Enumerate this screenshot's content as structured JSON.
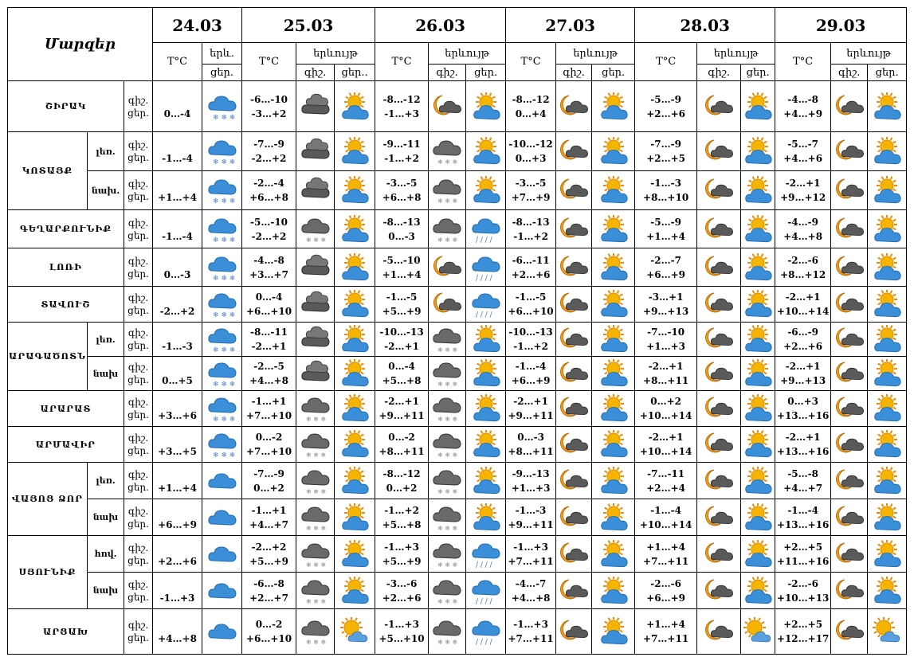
{
  "header": {
    "title": "Մարզեր",
    "temp_label": "T°C",
    "weather_label": "երևույթ",
    "weather_label_short": "երև.",
    "night": "գիշ.",
    "day": "ցեր.",
    "day_first": "ցեր..",
    "dates": [
      "24.03",
      "25.03",
      "26.03",
      "27.03",
      "28.03",
      "29.03"
    ]
  },
  "rows": [
    {
      "region": "ՇԻՐԱԿ",
      "sub": "",
      "days": [
        {
          "t1": "",
          "t2": "0…-4",
          "icons": [
            "snow"
          ]
        },
        {
          "t1": "-6…-10",
          "t2": "-3…+2",
          "icons": [
            "cloud-dark",
            "sun-cloud"
          ]
        },
        {
          "t1": "-8…-12",
          "t2": "-1…+3",
          "icons": [
            "moon-cloud",
            "sun-cloud"
          ]
        },
        {
          "t1": "-8…-12",
          "t2": "0…+4",
          "icons": [
            "moon-cloud",
            "sun-cloud"
          ]
        },
        {
          "t1": "-5…-9",
          "t2": "+2…+6",
          "icons": [
            "moon-cloud",
            "sun-cloud"
          ]
        },
        {
          "t1": "-4…-8",
          "t2": "+4…+9",
          "icons": [
            "moon-cloud",
            "sun-cloud"
          ]
        }
      ]
    },
    {
      "region": "ԿՈՏԱՅՔ",
      "sub": "լեռ.",
      "days": [
        {
          "t1": "",
          "t2": "-1…-4",
          "icons": [
            "snow"
          ]
        },
        {
          "t1": "-7…-9",
          "t2": "-2…+2",
          "icons": [
            "cloud-dark",
            "sun-cloud"
          ]
        },
        {
          "t1": "-9…-11",
          "t2": "-1…+2",
          "icons": [
            "snow-dark",
            "sun-cloud"
          ]
        },
        {
          "t1": "-10…-12",
          "t2": "0…+3",
          "icons": [
            "moon-cloud",
            "sun-cloud"
          ]
        },
        {
          "t1": "-7…-9",
          "t2": "+2…+5",
          "icons": [
            "moon-cloud",
            "sun-cloud"
          ]
        },
        {
          "t1": "-5…-7",
          "t2": "+4…+6",
          "icons": [
            "moon-cloud",
            "sun-cloud"
          ]
        }
      ]
    },
    {
      "region": "",
      "sub": "նախ.",
      "days": [
        {
          "t1": "",
          "t2": "+1…+4",
          "icons": [
            "snow"
          ]
        },
        {
          "t1": "-2…-4",
          "t2": "+6…+8",
          "icons": [
            "cloud-dark",
            "sun-cloud"
          ]
        },
        {
          "t1": "-3…-5",
          "t2": "+6…+8",
          "icons": [
            "snow-dark",
            "sun-cloud"
          ]
        },
        {
          "t1": "-3…-5",
          "t2": "+7…+9",
          "icons": [
            "moon-cloud",
            "sun-cloud"
          ]
        },
        {
          "t1": "-1…-3",
          "t2": "+8…+10",
          "icons": [
            "moon-cloud",
            "sun-cloud"
          ]
        },
        {
          "t1": "-2…+1",
          "t2": "+9…+12",
          "icons": [
            "moon-cloud",
            "sun-cloud"
          ]
        }
      ]
    },
    {
      "region": "ԳԵՂԱՐՔՈՒՆԻՔ",
      "sub": "",
      "days": [
        {
          "t1": "",
          "t2": "-1…-4",
          "icons": [
            "snow"
          ]
        },
        {
          "t1": "-5…-10",
          "t2": "-2…+2",
          "icons": [
            "snow-dark",
            "sun-cloud"
          ]
        },
        {
          "t1": "-8…-13",
          "t2": "0…-3",
          "icons": [
            "snow-dark",
            "rain"
          ]
        },
        {
          "t1": "-8…-13",
          "t2": "-1…+2",
          "icons": [
            "moon-cloud",
            "sun-cloud"
          ]
        },
        {
          "t1": "-5…-9",
          "t2": "+1…+4",
          "icons": [
            "moon-cloud",
            "sun-cloud"
          ]
        },
        {
          "t1": "-4…-9",
          "t2": "+4…+8",
          "icons": [
            "moon-cloud",
            "sun-cloud"
          ]
        }
      ]
    },
    {
      "region": "ԼՈՌԻ",
      "sub": "",
      "days": [
        {
          "t1": "",
          "t2": "0…-3",
          "icons": [
            "snow"
          ]
        },
        {
          "t1": "-4…-8",
          "t2": "+3…+7",
          "icons": [
            "cloud-dark",
            "sun-cloud"
          ]
        },
        {
          "t1": "-5…-10",
          "t2": "+1…+4",
          "icons": [
            "moon-cloud",
            "rain"
          ]
        },
        {
          "t1": "-6…-11",
          "t2": "+2…+6",
          "icons": [
            "moon-cloud",
            "sun-cloud"
          ]
        },
        {
          "t1": "-2…-7",
          "t2": "+6…+9",
          "icons": [
            "moon-cloud",
            "sun-cloud"
          ]
        },
        {
          "t1": "-2…-6",
          "t2": "+8…+12",
          "icons": [
            "moon-cloud",
            "sun-cloud"
          ]
        }
      ]
    },
    {
      "region": "ՏԱՎՈՒՇ",
      "sub": "",
      "days": [
        {
          "t1": "",
          "t2": "-2…+2",
          "icons": [
            "snow"
          ]
        },
        {
          "t1": "0…-4",
          "t2": "+6…+10",
          "icons": [
            "cloud-dark",
            "sun-cloud"
          ]
        },
        {
          "t1": "-1…-5",
          "t2": "+5…+9",
          "icons": [
            "moon-cloud",
            "rain"
          ]
        },
        {
          "t1": "-1…-5",
          "t2": "+6…+10",
          "icons": [
            "moon-cloud",
            "sun-cloud"
          ]
        },
        {
          "t1": "-3…+1",
          "t2": "+9…+13",
          "icons": [
            "moon-cloud",
            "sun-cloud"
          ]
        },
        {
          "t1": "-2…+1",
          "t2": "+10…+14",
          "icons": [
            "moon-cloud",
            "sun-cloud"
          ]
        }
      ]
    },
    {
      "region": "ԱՐԱԳԱԾՈՏՆ",
      "sub": "լեռ.",
      "days": [
        {
          "t1": "",
          "t2": "-1…-3",
          "icons": [
            "snow"
          ]
        },
        {
          "t1": "-8…-11",
          "t2": "-2…+1",
          "icons": [
            "cloud-dark",
            "sun-cloud"
          ]
        },
        {
          "t1": "-10…-13",
          "t2": "-2…+1",
          "icons": [
            "snow-dark",
            "sun-cloud"
          ]
        },
        {
          "t1": "-10…-13",
          "t2": "-1…+2",
          "icons": [
            "moon-cloud",
            "sun-cloud"
          ]
        },
        {
          "t1": "-7…-10",
          "t2": "+1…+3",
          "icons": [
            "moon-cloud",
            "sun-cloud"
          ]
        },
        {
          "t1": "-6…-9",
          "t2": "+2…+6",
          "icons": [
            "moon-cloud",
            "sun-cloud"
          ]
        }
      ]
    },
    {
      "region": "",
      "sub": "նախ",
      "days": [
        {
          "t1": "",
          "t2": "0…+5",
          "icons": [
            "snow"
          ]
        },
        {
          "t1": "-2…-5",
          "t2": "+4…+8",
          "icons": [
            "cloud-dark",
            "sun-cloud"
          ]
        },
        {
          "t1": "0…-4",
          "t2": "+5…+8",
          "icons": [
            "snow-dark",
            "sun-cloud"
          ]
        },
        {
          "t1": "-1…-4",
          "t2": "+6…+9",
          "icons": [
            "moon-cloud",
            "sun-cloud"
          ]
        },
        {
          "t1": "-2…+1",
          "t2": "+8…+11",
          "icons": [
            "moon-cloud",
            "sun-cloud"
          ]
        },
        {
          "t1": "-2…+1",
          "t2": "+9…+13",
          "icons": [
            "moon-cloud",
            "sun-cloud"
          ]
        }
      ]
    },
    {
      "region": "ԱՐԱՐԱՏ",
      "sub": "",
      "days": [
        {
          "t1": "",
          "t2": "+3…+6",
          "icons": [
            "snow"
          ]
        },
        {
          "t1": "-1…+1",
          "t2": "+7…+10",
          "icons": [
            "snow-dark",
            "sun-cloud"
          ]
        },
        {
          "t1": "-2…+1",
          "t2": "+9…+11",
          "icons": [
            "snow-dark",
            "sun-cloud"
          ]
        },
        {
          "t1": "-2…+1",
          "t2": "+9…+11",
          "icons": [
            "moon-cloud",
            "sun-cloud"
          ]
        },
        {
          "t1": "0…+2",
          "t2": "+10…+14",
          "icons": [
            "moon-cloud",
            "sun-cloud"
          ]
        },
        {
          "t1": "0…+3",
          "t2": "+13…+16",
          "icons": [
            "moon-cloud",
            "sun-cloud"
          ]
        }
      ]
    },
    {
      "region": "ԱՐՄԱՎԻՐ",
      "sub": "",
      "days": [
        {
          "t1": "",
          "t2": "+3…+5",
          "icons": [
            "snow"
          ]
        },
        {
          "t1": "0…-2",
          "t2": "+7…+10",
          "icons": [
            "snow-dark",
            "sun-cloud"
          ]
        },
        {
          "t1": "0…-2",
          "t2": "+8…+11",
          "icons": [
            "snow-dark",
            "sun-cloud"
          ]
        },
        {
          "t1": "0…-3",
          "t2": "+8…+11",
          "icons": [
            "moon-cloud",
            "sun-cloud"
          ]
        },
        {
          "t1": "-2…+1",
          "t2": "+10…+14",
          "icons": [
            "moon-cloud",
            "sun-cloud"
          ]
        },
        {
          "t1": "-2…+1",
          "t2": "+13…+16",
          "icons": [
            "moon-cloud",
            "sun-cloud"
          ]
        }
      ]
    },
    {
      "region": "ՎԱՅՈՑ ՁՈՐ",
      "sub": "լեռ.",
      "days": [
        {
          "t1": "",
          "t2": "+1…+4",
          "icons": [
            "cloud-blue"
          ]
        },
        {
          "t1": "-7…-9",
          "t2": "0…+2",
          "icons": [
            "snow-dark",
            "sun-cloud"
          ]
        },
        {
          "t1": "-8…-12",
          "t2": "0…+2",
          "icons": [
            "snow-dark",
            "sun-cloud"
          ]
        },
        {
          "t1": "-9…-13",
          "t2": "+1…+3",
          "icons": [
            "moon-cloud",
            "sun-cloud"
          ]
        },
        {
          "t1": "-7…-11",
          "t2": "+2…+4",
          "icons": [
            "moon-cloud",
            "sun-cloud"
          ]
        },
        {
          "t1": "-5…-8",
          "t2": "+4…+7",
          "icons": [
            "moon-cloud",
            "sun-cloud"
          ]
        }
      ]
    },
    {
      "region": "",
      "sub": "նախ",
      "days": [
        {
          "t1": "",
          "t2": "+6…+9",
          "icons": [
            "cloud-blue"
          ]
        },
        {
          "t1": "-1…+1",
          "t2": "+4…+7",
          "icons": [
            "snow-dark",
            "sun-cloud"
          ]
        },
        {
          "t1": "-1…+2",
          "t2": "+5…+8",
          "icons": [
            "snow-dark",
            "sun-cloud"
          ]
        },
        {
          "t1": "-1…-3",
          "t2": "+9…+11",
          "icons": [
            "moon-cloud",
            "sun-cloud"
          ]
        },
        {
          "t1": "-1…-4",
          "t2": "+10…+14",
          "icons": [
            "moon-cloud",
            "sun-cloud"
          ]
        },
        {
          "t1": "-1…-4",
          "t2": "+13…+16",
          "icons": [
            "moon-cloud",
            "sun-cloud"
          ]
        }
      ]
    },
    {
      "region": "ՍՅՈՒՆԻՔ",
      "sub": "հով.",
      "days": [
        {
          "t1": "",
          "t2": "+2…+6",
          "icons": [
            "cloud-blue"
          ]
        },
        {
          "t1": "-2…+2",
          "t2": "+5…+9",
          "icons": [
            "snow-dark",
            "sun-cloud"
          ]
        },
        {
          "t1": "-1…+3",
          "t2": "+5…+9",
          "icons": [
            "snow-dark",
            "rain"
          ]
        },
        {
          "t1": "-1…+3",
          "t2": "+7…+11",
          "icons": [
            "moon-cloud",
            "sun-cloud"
          ]
        },
        {
          "t1": "+1…+4",
          "t2": "+7…+11",
          "icons": [
            "moon-cloud",
            "sun-cloud"
          ]
        },
        {
          "t1": "+2…+5",
          "t2": "+11…+16",
          "icons": [
            "moon-cloud",
            "sun-cloud"
          ]
        }
      ]
    },
    {
      "region": "",
      "sub": "նախ",
      "days": [
        {
          "t1": "",
          "t2": "-1…+3",
          "icons": [
            "cloud-blue"
          ]
        },
        {
          "t1": "-6…-8",
          "t2": "+2…+7",
          "icons": [
            "snow-dark",
            "sun-cloud"
          ]
        },
        {
          "t1": "-3…-6",
          "t2": "+2…+6",
          "icons": [
            "snow-dark",
            "rain"
          ]
        },
        {
          "t1": "-4…-7",
          "t2": "+4…+8",
          "icons": [
            "moon-cloud",
            "sun-cloud"
          ]
        },
        {
          "t1": "-2…-6",
          "t2": "+6…+9",
          "icons": [
            "moon-cloud",
            "sun-cloud"
          ]
        },
        {
          "t1": "-2…-6",
          "t2": "+10…+13",
          "icons": [
            "moon-cloud",
            "sun-cloud"
          ]
        }
      ]
    },
    {
      "region": "ԱՐՑԱԽ",
      "sub": "",
      "days": [
        {
          "t1": "",
          "t2": "+4…+8",
          "icons": [
            "cloud-blue"
          ]
        },
        {
          "t1": "0…-2",
          "t2": "+6…+10",
          "icons": [
            "snow-dark",
            "sun-partly"
          ]
        },
        {
          "t1": "-1…+3",
          "t2": "+5…+10",
          "icons": [
            "snow-dark",
            "rain"
          ]
        },
        {
          "t1": "-1…+3",
          "t2": "+7…+11",
          "icons": [
            "moon-cloud",
            "sun-cloud"
          ]
        },
        {
          "t1": "+1…+4",
          "t2": "+7…+11",
          "icons": [
            "moon-cloud",
            "sun-partly"
          ]
        },
        {
          "t1": "+2…+5",
          "t2": "+12…+17",
          "icons": [
            "moon-cloud",
            "sun-partly"
          ]
        }
      ]
    }
  ],
  "colors": {
    "cloud_blue": "#3a8fd8",
    "cloud_dark": "#555555",
    "sun": "#f5b400",
    "moon": "#f0a020"
  }
}
